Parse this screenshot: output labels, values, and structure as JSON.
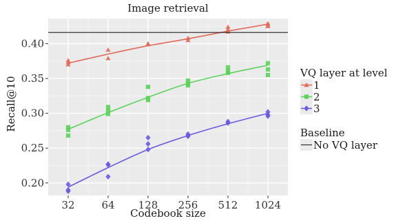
{
  "chart_data": {
    "type": "scatter",
    "title": "Image retrieval",
    "xlabel": "Codebook size",
    "ylabel": "Recall@10",
    "x_scale": "log2",
    "x_ticks": [
      "32",
      "64",
      "128",
      "256",
      "512",
      "1024"
    ],
    "x_tick_values": [
      32,
      64,
      128,
      256,
      512,
      1024
    ],
    "y_ticks": [
      "0.20",
      "0.25",
      "0.30",
      "0.35",
      "0.40"
    ],
    "y_tick_values": [
      0.2,
      0.25,
      0.3,
      0.35,
      0.4
    ],
    "ylim": [
      0.182,
      0.436
    ],
    "grid": true,
    "legend_title": "VQ layer at level",
    "series": [
      {
        "name": "1",
        "color": "#e06a5a",
        "marker": "triangle",
        "points": [
          [
            32,
            0.376
          ],
          [
            32,
            0.373
          ],
          [
            32,
            0.37
          ],
          [
            64,
            0.391
          ],
          [
            64,
            0.379
          ],
          [
            128,
            0.4
          ],
          [
            128,
            0.399
          ],
          [
            256,
            0.408
          ],
          [
            256,
            0.405
          ],
          [
            512,
            0.424
          ],
          [
            512,
            0.42
          ],
          [
            512,
            0.417
          ],
          [
            1024,
            0.429
          ],
          [
            1024,
            0.427
          ],
          [
            1024,
            0.425
          ]
        ],
        "fit": [
          [
            32,
            0.372
          ],
          [
            64,
            0.385
          ],
          [
            128,
            0.397
          ],
          [
            256,
            0.407
          ],
          [
            512,
            0.418
          ],
          [
            1024,
            0.428
          ]
        ]
      },
      {
        "name": "2",
        "color": "#5ad35a",
        "marker": "square",
        "points": [
          [
            32,
            0.28
          ],
          [
            32,
            0.276
          ],
          [
            32,
            0.268
          ],
          [
            64,
            0.309
          ],
          [
            64,
            0.304
          ],
          [
            64,
            0.299
          ],
          [
            128,
            0.338
          ],
          [
            128,
            0.322
          ],
          [
            128,
            0.319
          ],
          [
            256,
            0.347
          ],
          [
            256,
            0.343
          ],
          [
            256,
            0.34
          ],
          [
            512,
            0.366
          ],
          [
            512,
            0.361
          ],
          [
            512,
            0.358
          ],
          [
            1024,
            0.372
          ],
          [
            1024,
            0.363
          ],
          [
            1024,
            0.355
          ]
        ],
        "fit": [
          [
            32,
            0.277
          ],
          [
            64,
            0.301
          ],
          [
            128,
            0.323
          ],
          [
            256,
            0.343
          ],
          [
            512,
            0.357
          ],
          [
            1024,
            0.369
          ]
        ]
      },
      {
        "name": "3",
        "color": "#6a5adf",
        "marker": "diamond",
        "points": [
          [
            32,
            0.198
          ],
          [
            32,
            0.19
          ],
          [
            32,
            0.188
          ],
          [
            64,
            0.227
          ],
          [
            64,
            0.226
          ],
          [
            64,
            0.209
          ],
          [
            128,
            0.265
          ],
          [
            128,
            0.256
          ],
          [
            128,
            0.248
          ],
          [
            256,
            0.27
          ],
          [
            256,
            0.268
          ],
          [
            256,
            0.267
          ],
          [
            512,
            0.288
          ],
          [
            512,
            0.286
          ],
          [
            1024,
            0.302
          ],
          [
            1024,
            0.298
          ],
          [
            1024,
            0.296
          ]
        ],
        "fit": [
          [
            32,
            0.194
          ],
          [
            64,
            0.222
          ],
          [
            128,
            0.248
          ],
          [
            256,
            0.268
          ],
          [
            512,
            0.285
          ],
          [
            1024,
            0.3
          ]
        ]
      }
    ],
    "baseline": {
      "legend_title": "Baseline",
      "name": "No VQ layer",
      "value": 0.416,
      "color": "#222222"
    }
  }
}
